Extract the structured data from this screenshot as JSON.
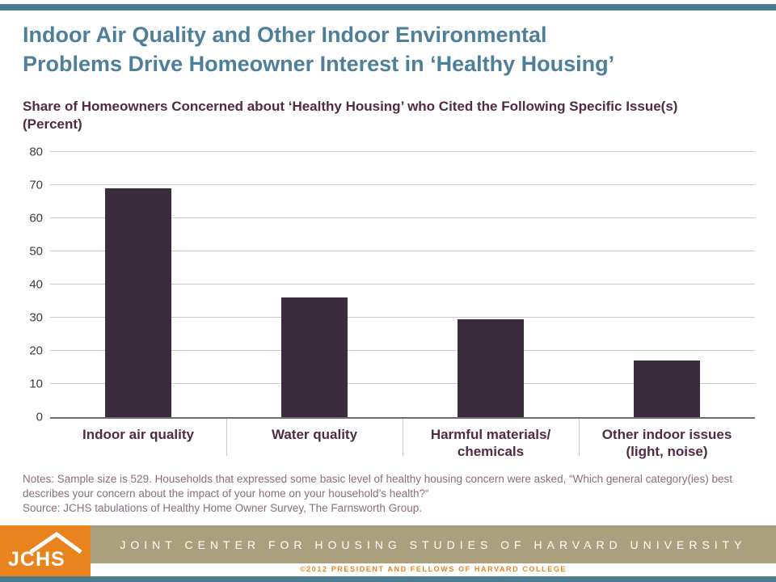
{
  "slide": {
    "title_line1": "Indoor Air Quality and Other Indoor Environmental",
    "title_line2": "Problems Drive Homeowner Interest in ‘Healthy Housing’",
    "subtitle_line1": "Share of Homeowners Concerned about ‘Healthy Housing’ who Cited the Following Specific Issue(s)",
    "subtitle_line2": "(Percent)",
    "notes": "Notes: Sample size is 529.  Households that expressed some basic level of healthy housing concern were asked, “Which general category(ies) best describes your concern about the impact of your home on your household’s health?“",
    "source": "Source: JCHS  tabulations of Healthy Home Owner Survey, The Farnsworth Group.",
    "footer_text": "JOINT CENTER FOR HOUSING STUDIES OF HARVARD UNIVERSITY",
    "copyright": "©2012  PRESIDENT  AND  FELLOWS  OF  HARVARD  COLLEGE",
    "logo_text": "JCHS"
  },
  "colors": {
    "accent_teal": "#4a7b91",
    "title_blue": "#4e7f98",
    "plum": "#512a44",
    "bar_fill": "#3a2b3d",
    "notes_mauve": "#8e6c80",
    "footer_tan": "#aba07d",
    "brand_orange": "#e8831e",
    "gridline_gray": "#c9c9c9"
  },
  "chart_data": {
    "type": "bar",
    "title": "Share of Homeowners Concerned about ‘Healthy Housing’ who Cited the Following Specific Issue(s) (Percent)",
    "categories": [
      "Indoor air quality",
      "Water quality",
      "Harmful materials/\nchemicals",
      "Other indoor issues\n(light, noise)"
    ],
    "values": [
      69,
      36,
      29.5,
      17
    ],
    "xlabel": "",
    "ylabel": "",
    "ylim": [
      0,
      80
    ],
    "yticks": [
      0,
      10,
      20,
      30,
      40,
      50,
      60,
      70,
      80
    ],
    "grid": true,
    "legend": false
  }
}
